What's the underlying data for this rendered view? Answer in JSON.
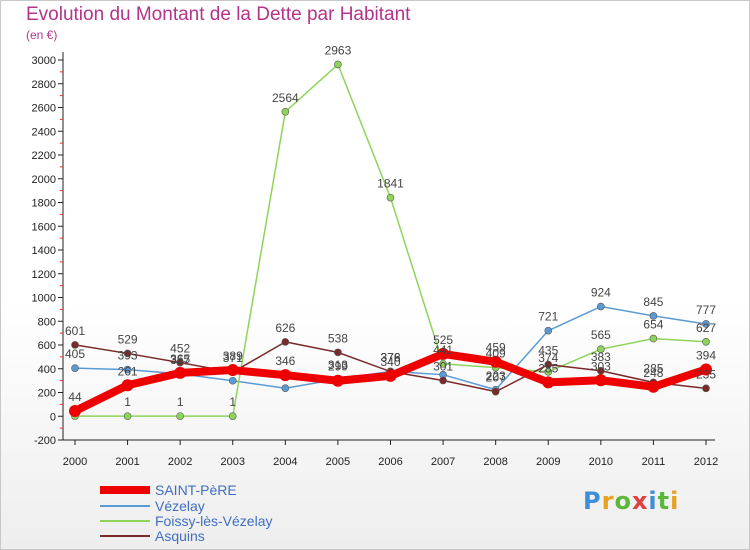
{
  "header": {
    "title": "Evolution du Montant de la Dette par Habitant",
    "subtitle": "(en €)"
  },
  "logo": {
    "text": "Proxiti",
    "letters": [
      "P",
      "r",
      "o",
      "x",
      "i",
      "t",
      "i"
    ],
    "colors": [
      "#3f8fd8",
      "#e8a020",
      "#5cb83a",
      "#e04040",
      "#3f8fd8",
      "#5cb83a",
      "#e8a020"
    ]
  },
  "chart_data": {
    "type": "line",
    "title": "Evolution du Montant de la Dette par Habitant",
    "subtitle": "(en €)",
    "xlabel": "",
    "ylabel": "",
    "ylim": [
      -200,
      3000
    ],
    "yticks": [
      -200,
      0,
      200,
      400,
      600,
      800,
      1000,
      1200,
      1400,
      1600,
      1800,
      2000,
      2200,
      2400,
      2600,
      2800,
      3000
    ],
    "grid": false,
    "legend_position": "bottom-left",
    "x": [
      "2000",
      "2001",
      "2002",
      "2003",
      "2004",
      "2005",
      "2006",
      "2007",
      "2008",
      "2009",
      "2010",
      "2011",
      "2012"
    ],
    "series": [
      {
        "name": "SAINT-PèRE",
        "color": "#ee0000",
        "emphasis": true,
        "values": [
          44,
          261,
          365,
          389,
          346,
          299,
          340,
          525,
          459,
          285,
          303,
          248,
          394
        ],
        "labels": [
          "44",
          "261",
          "365",
          "389",
          "346",
          "299",
          "340",
          "525",
          "459",
          "285",
          "303",
          "248",
          "394"
        ]
      },
      {
        "name": "Vézelay",
        "color": "#5b9bd5",
        "emphasis": false,
        "values": [
          405,
          393,
          357,
          299,
          236,
          313,
          378,
          350,
          223,
          721,
          924,
          845,
          777
        ],
        "labels": [
          "405",
          "393",
          "357",
          "",
          "",
          "313",
          "378",
          "",
          "223",
          "721",
          "924",
          "845",
          "777"
        ]
      },
      {
        "name": "Foissy-lès-Vézelay",
        "color": "#8fd45a",
        "emphasis": false,
        "values": [
          1,
          1,
          1,
          1,
          2564,
          2963,
          1841,
          441,
          409,
          374,
          565,
          654,
          627
        ],
        "labels": [
          "",
          "1",
          "1",
          "1",
          "2564",
          "2963",
          "1841",
          "441",
          "409",
          "374",
          "565",
          "654",
          "627"
        ]
      },
      {
        "name": "Asquins",
        "color": "#7a2a2a",
        "emphasis": false,
        "values": [
          601,
          529,
          452,
          371,
          626,
          538,
          376,
          301,
          207,
          435,
          383,
          285,
          235
        ],
        "labels": [
          "601",
          "529",
          "452",
          "371",
          "626",
          "538",
          "376",
          "301",
          "207",
          "435",
          "383",
          "285",
          "235"
        ]
      }
    ]
  }
}
